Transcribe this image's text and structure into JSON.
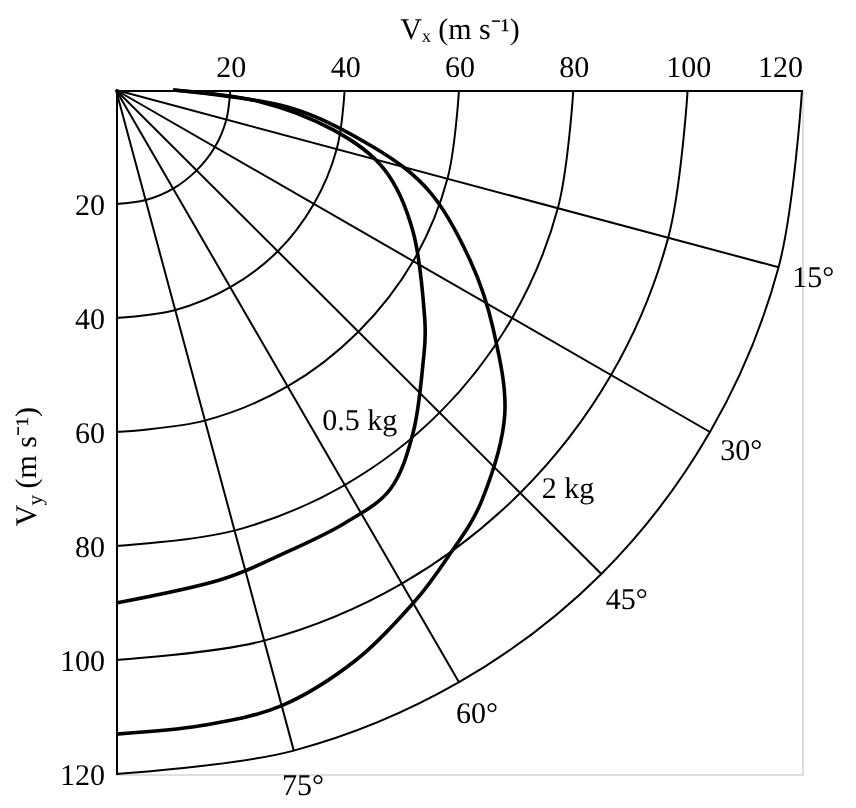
{
  "chart_data": {
    "type": "line",
    "xlabel": "Vₓ (m s⁻¹)",
    "ylabel": "V$_{y}$ (m s⁻¹)",
    "xlim": [
      0,
      120
    ],
    "ylim": [
      120,
      0
    ],
    "xticks": [
      20,
      40,
      60,
      80,
      100,
      120
    ],
    "yticks": [
      20,
      40,
      60,
      80,
      100,
      120
    ],
    "series": [
      {
        "name": "0.5 kg",
        "color": "#000000",
        "x": [
          10,
          25,
          38,
          47,
          52,
          54,
          53.7,
          52,
          48,
          40,
          30,
          18,
          0
        ],
        "values": [
          0,
          2,
          7,
          14,
          25,
          40,
          48,
          60,
          70,
          76,
          81,
          86,
          90
        ]
      },
      {
        "name": "2 kg",
        "color": "#000000",
        "x": [
          10,
          30,
          45,
          55,
          62,
          66,
          68,
          64,
          58,
          52,
          42,
          29,
          15,
          0
        ],
        "values": [
          0,
          3,
          10,
          18,
          30,
          42,
          57,
          72,
          82,
          90,
          100,
          108,
          111.5,
          113
        ]
      },
      {
        "color": "#000000",
        "x": [
          20,
          19.3,
          17.3,
          14.1,
          10,
          5.2,
          0
        ],
        "values": [
          0,
          5.2,
          10,
          14.1,
          17.3,
          19.3,
          20
        ]
      },
      {
        "color": "#000000",
        "x": [
          40,
          38.6,
          34.6,
          28.3,
          20,
          10.4,
          0
        ],
        "values": [
          0,
          10.4,
          20,
          28.3,
          34.6,
          38.6,
          40
        ]
      },
      {
        "color": "#000000",
        "x": [
          60,
          58,
          52,
          42.4,
          30,
          15.5,
          0
        ],
        "values": [
          0,
          15.5,
          30,
          42.4,
          52,
          58,
          60
        ]
      },
      {
        "color": "#000000",
        "x": [
          80,
          77.3,
          69.3,
          56.6,
          40,
          20.7,
          0
        ],
        "values": [
          0,
          20.7,
          40,
          56.6,
          69.3,
          77.3,
          80
        ]
      },
      {
        "color": "#000000",
        "x": [
          100,
          96.6,
          86.6,
          70.7,
          50,
          25.9,
          0
        ],
        "values": [
          0,
          25.9,
          50,
          70.7,
          86.6,
          96.6,
          100
        ]
      },
      {
        "color": "#000000",
        "x": [
          120,
          115.9,
          103.9,
          84.9,
          60,
          31.1,
          0
        ],
        "values": [
          0,
          31.1,
          60,
          84.9,
          103.9,
          115.9,
          120
        ]
      },
      {
        "color": "#000000",
        "x": [
          0,
          115.9
        ],
        "values": [
          0,
          31.1
        ]
      },
      {
        "color": "#000000",
        "x": [
          0,
          103.9
        ],
        "values": [
          0,
          60
        ]
      },
      {
        "color": "#000000",
        "x": [
          0,
          84.9
        ],
        "values": [
          0,
          84.9
        ]
      },
      {
        "color": "#000000",
        "x": [
          0,
          60
        ],
        "values": [
          0,
          103.9
        ]
      },
      {
        "color": "#000000",
        "x": [
          0,
          31.1
        ],
        "values": [
          0,
          115.9
        ]
      }
    ],
    "annotations": [
      {
        "text": "15°",
        "x": 115.9,
        "y": 31.1
      },
      {
        "text": "30°",
        "x": 103.9,
        "y": 60
      },
      {
        "text": "45°",
        "x": 84.9,
        "y": 84.9
      },
      {
        "text": "60°",
        "x": 60,
        "y": 103.9
      },
      {
        "text": "75°",
        "x": 31.1,
        "y": 115.9
      }
    ]
  }
}
